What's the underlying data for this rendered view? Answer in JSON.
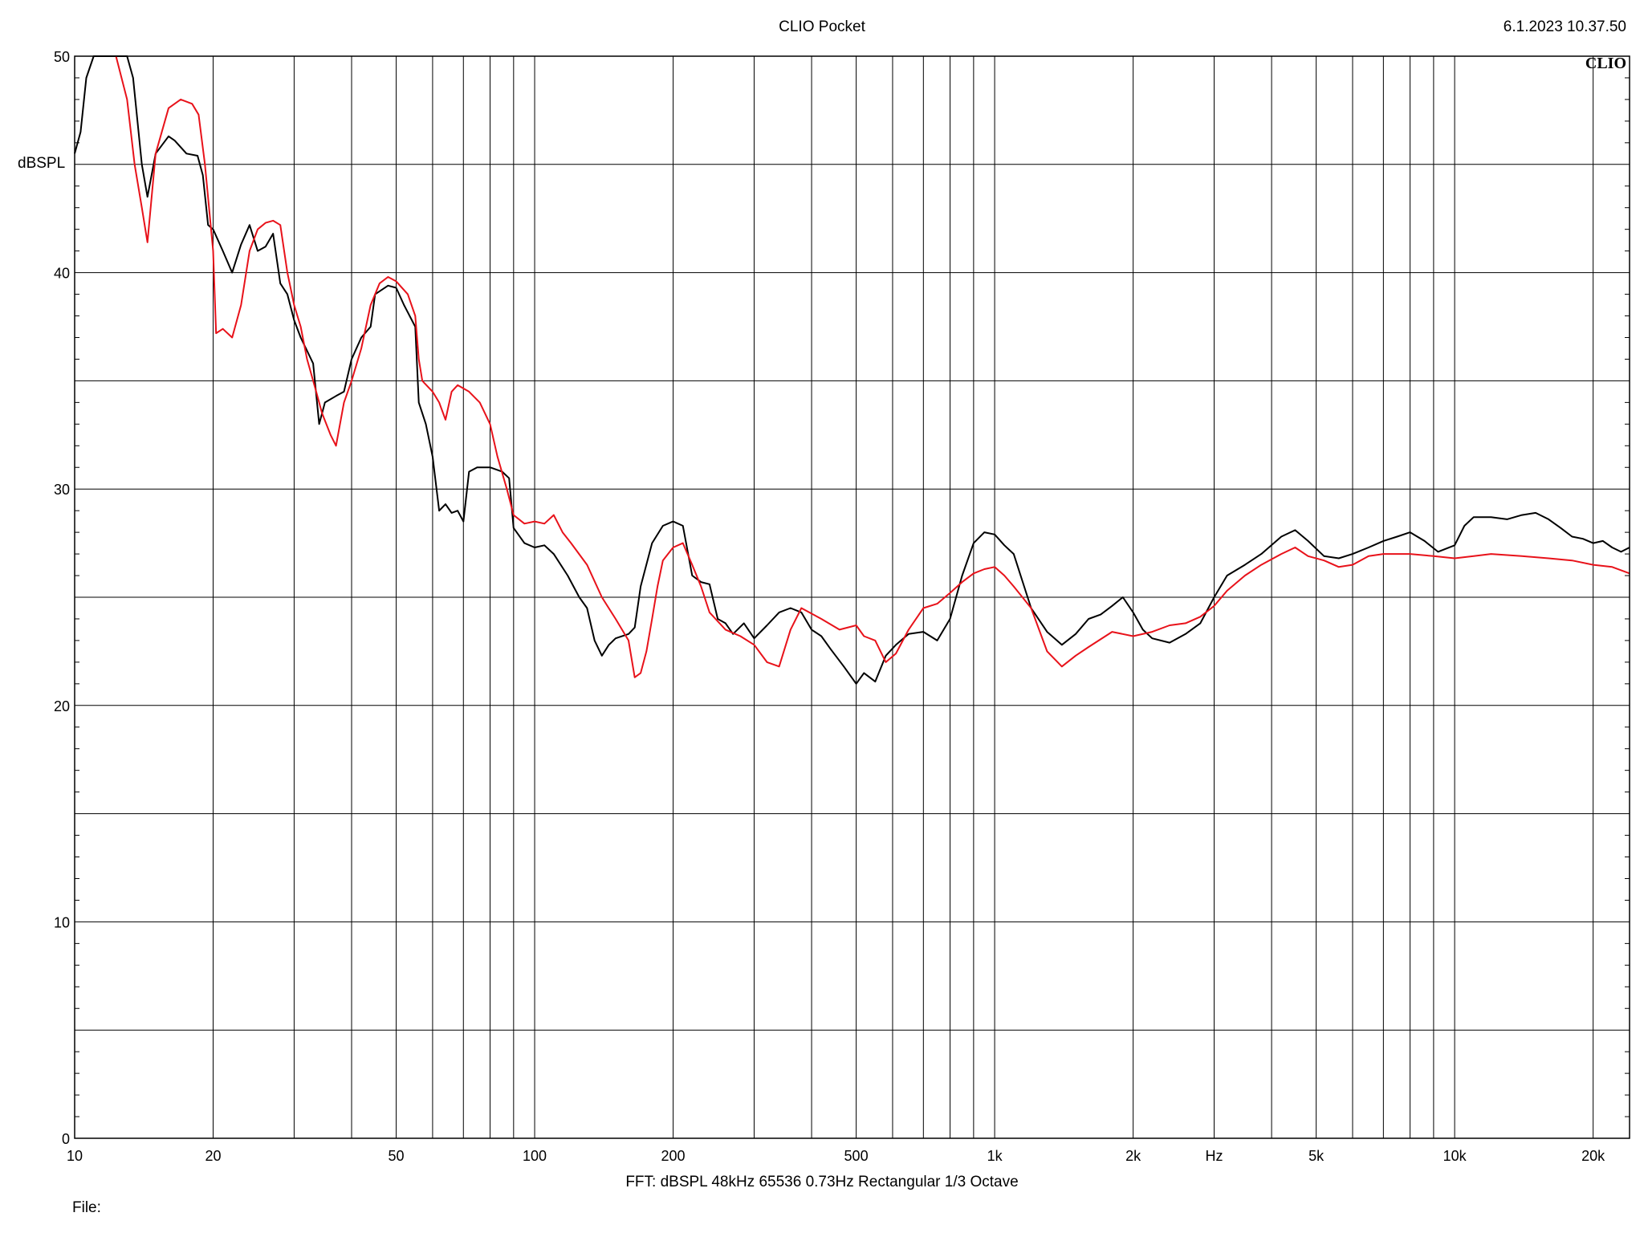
{
  "header": {
    "title": "CLIO Pocket",
    "timestamp": "6.1.2023 10.37.50",
    "brand": "CLIO"
  },
  "footer": {
    "settings": "FFT:  dBSPL  48kHz   65536  0.73Hz  Rectangular  1/3 Octave",
    "file_label": "File:"
  },
  "colors": {
    "series_black": "#000000",
    "series_red": "#e8121a",
    "grid": "#000000"
  },
  "chart_data": {
    "type": "line",
    "title": "CLIO Pocket",
    "xlabel": "Hz",
    "ylabel": "dBSPL",
    "x_scale": "log",
    "xlim": [
      10,
      24000
    ],
    "ylim": [
      0,
      50
    ],
    "grid": true,
    "x_ticks": [
      {
        "value": 10,
        "label": "10"
      },
      {
        "value": 20,
        "label": "20"
      },
      {
        "value": 50,
        "label": "50"
      },
      {
        "value": 100,
        "label": "100"
      },
      {
        "value": 200,
        "label": "200"
      },
      {
        "value": 500,
        "label": "500"
      },
      {
        "value": 1000,
        "label": "1k"
      },
      {
        "value": 2000,
        "label": "2k"
      },
      {
        "value": 3000,
        "label": "Hz"
      },
      {
        "value": 5000,
        "label": "5k"
      },
      {
        "value": 10000,
        "label": "10k"
      },
      {
        "value": 20000,
        "label": "20k"
      }
    ],
    "y_ticks": [
      {
        "value": 0,
        "label": "0"
      },
      {
        "value": 10,
        "label": "10"
      },
      {
        "value": 20,
        "label": "20"
      },
      {
        "value": 30,
        "label": "30"
      },
      {
        "value": 40,
        "label": "40"
      },
      {
        "value": 50,
        "label": "50"
      }
    ],
    "series": [
      {
        "color": "#000000",
        "points": [
          [
            10,
            45.5
          ],
          [
            10.3,
            46.5
          ],
          [
            10.6,
            49
          ],
          [
            11,
            50
          ],
          [
            12,
            50
          ],
          [
            13,
            50
          ],
          [
            13.4,
            49
          ],
          [
            14,
            45
          ],
          [
            14.4,
            43.5
          ],
          [
            15,
            45.5
          ],
          [
            16,
            46.3
          ],
          [
            16.5,
            46.1
          ],
          [
            17.5,
            45.5
          ],
          [
            18.5,
            45.4
          ],
          [
            19,
            44.5
          ],
          [
            19.5,
            42.2
          ],
          [
            20,
            42
          ],
          [
            21,
            41
          ],
          [
            22,
            40
          ],
          [
            23,
            41.3
          ],
          [
            24,
            42.2
          ],
          [
            25,
            41
          ],
          [
            26,
            41.2
          ],
          [
            27,
            41.8
          ],
          [
            28,
            39.5
          ],
          [
            29,
            39
          ],
          [
            30,
            37.8
          ],
          [
            31,
            37
          ],
          [
            33,
            35.8
          ],
          [
            34,
            33
          ],
          [
            35,
            34
          ],
          [
            37,
            34.3
          ],
          [
            38.5,
            34.5
          ],
          [
            40,
            36
          ],
          [
            42,
            37
          ],
          [
            44,
            37.5
          ],
          [
            45,
            39
          ],
          [
            48,
            39.4
          ],
          [
            50,
            39.3
          ],
          [
            52,
            38.5
          ],
          [
            55,
            37.5
          ],
          [
            56,
            34
          ],
          [
            58,
            33
          ],
          [
            60,
            31.5
          ],
          [
            62,
            29
          ],
          [
            64,
            29.3
          ],
          [
            66,
            28.9
          ],
          [
            68,
            29
          ],
          [
            70,
            28.5
          ],
          [
            72,
            30.8
          ],
          [
            75,
            31
          ],
          [
            80,
            31
          ],
          [
            85,
            30.8
          ],
          [
            88,
            30.5
          ],
          [
            90,
            28.2
          ],
          [
            95,
            27.5
          ],
          [
            100,
            27.3
          ],
          [
            105,
            27.4
          ],
          [
            110,
            27
          ],
          [
            118,
            26
          ],
          [
            125,
            25
          ],
          [
            130,
            24.5
          ],
          [
            135,
            23
          ],
          [
            140,
            22.3
          ],
          [
            145,
            22.8
          ],
          [
            150,
            23.1
          ],
          [
            160,
            23.3
          ],
          [
            165,
            23.6
          ],
          [
            170,
            25.5
          ],
          [
            180,
            27.5
          ],
          [
            190,
            28.3
          ],
          [
            200,
            28.5
          ],
          [
            210,
            28.3
          ],
          [
            220,
            26
          ],
          [
            230,
            25.7
          ],
          [
            240,
            25.6
          ],
          [
            250,
            24
          ],
          [
            260,
            23.8
          ],
          [
            270,
            23.3
          ],
          [
            285,
            23.8
          ],
          [
            300,
            23.1
          ],
          [
            320,
            23.7
          ],
          [
            340,
            24.3
          ],
          [
            360,
            24.5
          ],
          [
            380,
            24.3
          ],
          [
            400,
            23.5
          ],
          [
            420,
            23.2
          ],
          [
            440,
            22.6
          ],
          [
            470,
            21.8
          ],
          [
            500,
            21
          ],
          [
            520,
            21.5
          ],
          [
            550,
            21.1
          ],
          [
            580,
            22.3
          ],
          [
            610,
            22.8
          ],
          [
            650,
            23.3
          ],
          [
            700,
            23.4
          ],
          [
            750,
            23
          ],
          [
            800,
            24
          ],
          [
            850,
            26
          ],
          [
            900,
            27.5
          ],
          [
            950,
            28
          ],
          [
            1000,
            27.9
          ],
          [
            1050,
            27.4
          ],
          [
            1100,
            27
          ],
          [
            1200,
            24.5
          ],
          [
            1300,
            23.4
          ],
          [
            1400,
            22.8
          ],
          [
            1500,
            23.3
          ],
          [
            1600,
            24
          ],
          [
            1700,
            24.2
          ],
          [
            1800,
            24.6
          ],
          [
            1900,
            25
          ],
          [
            2000,
            24.3
          ],
          [
            2100,
            23.5
          ],
          [
            2200,
            23.1
          ],
          [
            2400,
            22.9
          ],
          [
            2600,
            23.3
          ],
          [
            2800,
            23.8
          ],
          [
            3000,
            25
          ],
          [
            3200,
            26
          ],
          [
            3500,
            26.5
          ],
          [
            3800,
            27
          ],
          [
            4200,
            27.8
          ],
          [
            4500,
            28.1
          ],
          [
            4800,
            27.6
          ],
          [
            5200,
            26.9
          ],
          [
            5600,
            26.8
          ],
          [
            6000,
            27
          ],
          [
            6500,
            27.3
          ],
          [
            7000,
            27.6
          ],
          [
            7500,
            27.8
          ],
          [
            8000,
            28
          ],
          [
            8600,
            27.6
          ],
          [
            9200,
            27.1
          ],
          [
            10000,
            27.4
          ],
          [
            10500,
            28.3
          ],
          [
            11000,
            28.7
          ],
          [
            12000,
            28.7
          ],
          [
            13000,
            28.6
          ],
          [
            14000,
            28.8
          ],
          [
            15000,
            28.9
          ],
          [
            16000,
            28.6
          ],
          [
            17000,
            28.2
          ],
          [
            18000,
            27.8
          ],
          [
            19000,
            27.7
          ],
          [
            20000,
            27.5
          ],
          [
            21000,
            27.6
          ],
          [
            22000,
            27.3
          ],
          [
            23000,
            27.1
          ],
          [
            24000,
            27.3
          ]
        ]
      },
      {
        "color": "#e8121a",
        "points": [
          [
            12.3,
            50
          ],
          [
            13,
            48
          ],
          [
            13.5,
            45
          ],
          [
            14,
            43
          ],
          [
            14.4,
            41.4
          ],
          [
            15,
            45.5
          ],
          [
            16,
            47.6
          ],
          [
            17,
            48
          ],
          [
            18,
            47.8
          ],
          [
            18.6,
            47.3
          ],
          [
            19.2,
            45
          ],
          [
            20,
            41
          ],
          [
            20.3,
            37.2
          ],
          [
            21,
            37.4
          ],
          [
            22,
            37
          ],
          [
            23,
            38.5
          ],
          [
            24,
            41
          ],
          [
            25,
            42
          ],
          [
            26,
            42.3
          ],
          [
            27,
            42.4
          ],
          [
            28,
            42.2
          ],
          [
            29,
            40
          ],
          [
            30,
            38.5
          ],
          [
            31,
            37.5
          ],
          [
            32,
            36
          ],
          [
            33.5,
            34.5
          ],
          [
            34.5,
            33.5
          ],
          [
            36,
            32.5
          ],
          [
            37,
            32
          ],
          [
            38.5,
            34
          ],
          [
            40,
            35
          ],
          [
            42,
            36.5
          ],
          [
            44,
            38.5
          ],
          [
            46,
            39.5
          ],
          [
            48,
            39.8
          ],
          [
            50,
            39.6
          ],
          [
            53,
            39
          ],
          [
            55,
            38
          ],
          [
            56,
            36
          ],
          [
            57,
            35
          ],
          [
            60,
            34.5
          ],
          [
            62,
            34
          ],
          [
            64,
            33.2
          ],
          [
            66,
            34.5
          ],
          [
            68,
            34.8
          ],
          [
            72,
            34.5
          ],
          [
            76,
            34
          ],
          [
            80,
            33
          ],
          [
            83,
            31.5
          ],
          [
            87,
            30
          ],
          [
            90,
            28.8
          ],
          [
            95,
            28.4
          ],
          [
            100,
            28.5
          ],
          [
            105,
            28.4
          ],
          [
            110,
            28.8
          ],
          [
            115,
            28
          ],
          [
            120,
            27.5
          ],
          [
            130,
            26.5
          ],
          [
            140,
            25
          ],
          [
            150,
            24
          ],
          [
            160,
            23
          ],
          [
            165,
            21.3
          ],
          [
            170,
            21.5
          ],
          [
            175,
            22.5
          ],
          [
            180,
            24
          ],
          [
            185,
            25.5
          ],
          [
            190,
            26.7
          ],
          [
            200,
            27.3
          ],
          [
            210,
            27.5
          ],
          [
            220,
            26.5
          ],
          [
            230,
            25.5
          ],
          [
            240,
            24.3
          ],
          [
            260,
            23.5
          ],
          [
            280,
            23.2
          ],
          [
            300,
            22.8
          ],
          [
            320,
            22
          ],
          [
            340,
            21.8
          ],
          [
            360,
            23.5
          ],
          [
            380,
            24.5
          ],
          [
            420,
            24
          ],
          [
            460,
            23.5
          ],
          [
            500,
            23.7
          ],
          [
            520,
            23.2
          ],
          [
            550,
            23
          ],
          [
            580,
            22
          ],
          [
            610,
            22.4
          ],
          [
            650,
            23.5
          ],
          [
            700,
            24.5
          ],
          [
            750,
            24.7
          ],
          [
            800,
            25.2
          ],
          [
            850,
            25.7
          ],
          [
            900,
            26.1
          ],
          [
            950,
            26.3
          ],
          [
            1000,
            26.4
          ],
          [
            1050,
            26
          ],
          [
            1100,
            25.5
          ],
          [
            1200,
            24.5
          ],
          [
            1300,
            22.5
          ],
          [
            1400,
            21.8
          ],
          [
            1500,
            22.3
          ],
          [
            1600,
            22.7
          ],
          [
            1800,
            23.4
          ],
          [
            2000,
            23.2
          ],
          [
            2200,
            23.4
          ],
          [
            2400,
            23.7
          ],
          [
            2600,
            23.8
          ],
          [
            2800,
            24.1
          ],
          [
            3000,
            24.6
          ],
          [
            3200,
            25.3
          ],
          [
            3500,
            26
          ],
          [
            3800,
            26.5
          ],
          [
            4200,
            27
          ],
          [
            4500,
            27.3
          ],
          [
            4800,
            26.9
          ],
          [
            5200,
            26.7
          ],
          [
            5600,
            26.4
          ],
          [
            6000,
            26.5
          ],
          [
            6500,
            26.9
          ],
          [
            7000,
            27
          ],
          [
            8000,
            27
          ],
          [
            9000,
            26.9
          ],
          [
            10000,
            26.8
          ],
          [
            11000,
            26.9
          ],
          [
            12000,
            27
          ],
          [
            14000,
            26.9
          ],
          [
            16000,
            26.8
          ],
          [
            18000,
            26.7
          ],
          [
            20000,
            26.5
          ],
          [
            22000,
            26.4
          ],
          [
            24000,
            26.1
          ]
        ]
      }
    ]
  }
}
